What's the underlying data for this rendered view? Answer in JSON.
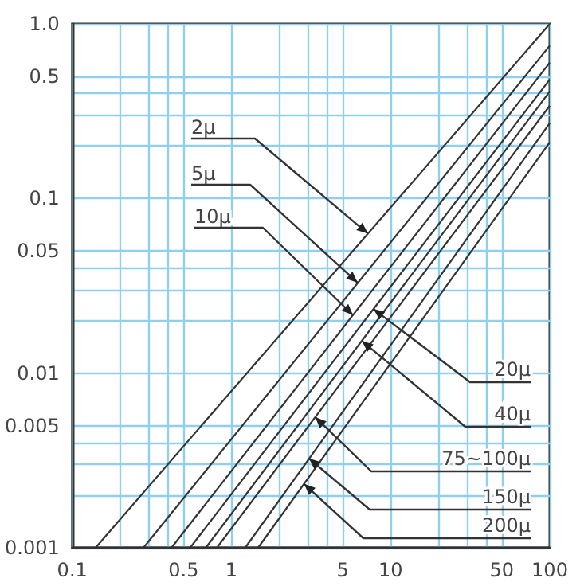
{
  "chart_data": {
    "type": "line",
    "log": "xy",
    "grid": true,
    "marker": "none",
    "line_style": "solid",
    "xlim": [
      0.1,
      100
    ],
    "ylim": [
      0.001,
      1
    ],
    "xticks": [
      0.1,
      {
        "value": 0.2,
        "label": null
      },
      {
        "value": 0.3,
        "label": null
      },
      {
        "value": 0.4,
        "label": null
      },
      0.5,
      1,
      {
        "value": 2,
        "label": null
      },
      {
        "value": 3,
        "label": null
      },
      {
        "value": 4,
        "label": null
      },
      5,
      10,
      {
        "value": 20,
        "label": null
      },
      {
        "value": 30,
        "label": null
      },
      {
        "value": 40,
        "label": null
      },
      50,
      100
    ],
    "yticks": [
      0.001,
      {
        "value": 0.002,
        "label": null
      },
      {
        "value": 0.003,
        "label": null
      },
      {
        "value": 0.004,
        "label": null
      },
      0.005,
      0.01,
      {
        "value": 0.02,
        "label": null
      },
      {
        "value": 0.03,
        "label": null
      },
      {
        "value": 0.04,
        "label": null
      },
      0.05,
      0.1,
      {
        "value": 0.2,
        "label": null
      },
      {
        "value": 0.3,
        "label": null
      },
      {
        "value": 0.4,
        "label": null
      },
      0.5,
      {
        "value": 1,
        "label": "1.0"
      }
    ],
    "series": [
      {
        "color": "#333333",
        "x": [
          0.14,
          100
        ],
        "values": [
          0.001,
          1
        ]
      },
      {
        "color": "#333333",
        "x": [
          0.28,
          100
        ],
        "values": [
          0.001,
          0.75
        ]
      },
      {
        "color": "#333333",
        "x": [
          0.42,
          100
        ],
        "values": [
          0.001,
          0.6
        ]
      },
      {
        "color": "#333333",
        "x": [
          0.55,
          100
        ],
        "values": [
          0.001,
          0.48
        ]
      },
      {
        "color": "#333333",
        "x": [
          0.69,
          100
        ],
        "values": [
          0.001,
          0.41
        ]
      },
      {
        "color": "#333333",
        "x": [
          0.81,
          100
        ],
        "values": [
          0.001,
          0.34
        ]
      },
      {
        "color": "#333333",
        "x": [
          1.22,
          100
        ],
        "values": [
          0.001,
          0.27
        ]
      },
      {
        "color": "#333333",
        "x": [
          1.47,
          100
        ],
        "values": [
          0.001,
          0.21
        ]
      }
    ],
    "annotations": [
      {
        "text": "2μ",
        "x": 7.2,
        "y": 0.063
      },
      {
        "text": "5μ",
        "x": 6.2,
        "y": 0.033
      },
      {
        "text": "10μ",
        "x": 5.8,
        "y": 0.0215
      },
      {
        "text": "20μ",
        "x": 7.8,
        "y": 0.0233
      },
      {
        "text": "40μ",
        "x": 6.6,
        "y": 0.0153
      },
      {
        "text": "75~100μ",
        "x": 3.36,
        "y": 0.0056
      },
      {
        "text": "150μ",
        "x": 3.07,
        "y": 0.00325
      },
      {
        "text": "200μ",
        "x": 2.86,
        "y": 0.00232
      }
    ]
  }
}
